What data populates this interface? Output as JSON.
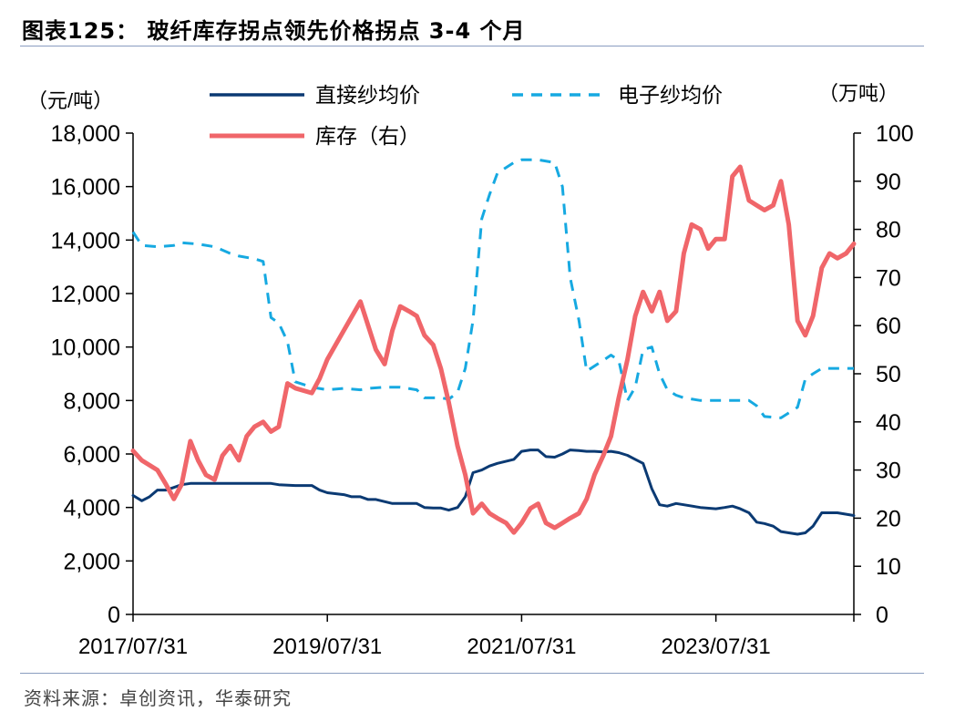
{
  "header": {
    "title": "图表125：  玻纤库存拐点领先价格拐点 3-4 个月"
  },
  "footer": {
    "source": "资料来源：卓创资讯，华泰研究"
  },
  "chart_data": {
    "type": "line",
    "left_axis": {
      "unit": "（元/吨）",
      "min": 0,
      "max": 18000,
      "step": 2000,
      "ticks": [
        "0",
        "2,000",
        "4,000",
        "6,000",
        "8,000",
        "10,000",
        "12,000",
        "14,000",
        "16,000",
        "18,000"
      ]
    },
    "right_axis": {
      "unit": "（万吨）",
      "min": 0,
      "max": 100,
      "step": 10,
      "ticks": [
        "0",
        "10",
        "20",
        "30",
        "40",
        "50",
        "60",
        "70",
        "80",
        "90",
        "100"
      ]
    },
    "x_axis": {
      "start": "2017/07/31",
      "end": "2025/01/31",
      "tick_labels": [
        "2017/07/31",
        "2019/07/31",
        "2021/07/31",
        "2023/07/31"
      ],
      "tick_values": [
        2017.58,
        2019.58,
        2021.58,
        2023.58
      ]
    },
    "legend": {
      "placement": "top",
      "entries": [
        {
          "label": "直接纱均价",
          "series": 0
        },
        {
          "label": "电子纱均价",
          "series": 1
        },
        {
          "label": "库存（右）",
          "series": 2
        }
      ]
    },
    "series": [
      {
        "name": "直接纱均价",
        "axis": "left",
        "color": "#0b3a73",
        "style": "solid",
        "x": [
          2017.58,
          2017.67,
          2017.75,
          2017.83,
          2017.92,
          2018.0,
          2018.08,
          2018.17,
          2018.25,
          2018.5,
          2018.75,
          2019.0,
          2019.08,
          2019.25,
          2019.42,
          2019.5,
          2019.58,
          2019.75,
          2019.83,
          2019.92,
          2020.0,
          2020.08,
          2020.25,
          2020.33,
          2020.5,
          2020.58,
          2020.67,
          2020.75,
          2020.83,
          2020.92,
          2021.0,
          2021.08,
          2021.17,
          2021.25,
          2021.33,
          2021.5,
          2021.58,
          2021.67,
          2021.75,
          2021.83,
          2021.92,
          2022.0,
          2022.08,
          2022.17,
          2022.25,
          2022.33,
          2022.42,
          2022.5,
          2022.58,
          2022.67,
          2022.75,
          2022.83,
          2022.92,
          2023.0,
          2023.08,
          2023.17,
          2023.25,
          2023.42,
          2023.58,
          2023.67,
          2023.75,
          2023.83,
          2023.92,
          2024.0,
          2024.08,
          2024.17,
          2024.25,
          2024.33,
          2024.42,
          2024.5,
          2024.58,
          2024.67,
          2024.83,
          2025.0
        ],
        "y": [
          4450,
          4250,
          4400,
          4650,
          4650,
          4750,
          4850,
          4900,
          4900,
          4900,
          4900,
          4900,
          4850,
          4820,
          4820,
          4650,
          4550,
          4480,
          4400,
          4400,
          4300,
          4300,
          4150,
          4150,
          4150,
          4000,
          3980,
          3980,
          3900,
          4000,
          4400,
          5300,
          5400,
          5550,
          5650,
          5800,
          6100,
          6150,
          6150,
          5900,
          5880,
          6000,
          6150,
          6130,
          6100,
          6100,
          6080,
          6100,
          6050,
          5950,
          5800,
          5650,
          4700,
          4100,
          4050,
          4150,
          4100,
          4000,
          3950,
          4000,
          4050,
          3950,
          3800,
          3450,
          3400,
          3300,
          3100,
          3050,
          3000,
          3050,
          3300,
          3800,
          3800,
          3700
        ]
      },
      {
        "name": "电子纱均价",
        "axis": "left",
        "color": "#16a9e1",
        "style": "dashed",
        "x": [
          2017.58,
          2017.67,
          2017.83,
          2018.0,
          2018.08,
          2018.25,
          2018.42,
          2018.58,
          2018.67,
          2018.83,
          2018.92,
          2019.0,
          2019.08,
          2019.17,
          2019.25,
          2019.42,
          2019.58,
          2019.75,
          2019.92,
          2020.0,
          2020.17,
          2020.33,
          2020.5,
          2020.58,
          2020.75,
          2020.83,
          2020.92,
          2021.0,
          2021.08,
          2021.17,
          2021.25,
          2021.33,
          2021.5,
          2021.58,
          2021.75,
          2021.92,
          2022.0,
          2022.08,
          2022.17,
          2022.25,
          2022.42,
          2022.5,
          2022.58,
          2022.67,
          2022.75,
          2022.83,
          2022.92,
          2023.0,
          2023.08,
          2023.17,
          2023.25,
          2023.42,
          2023.58,
          2023.75,
          2023.92,
          2024.0,
          2024.08,
          2024.25,
          2024.42,
          2024.5,
          2024.58,
          2024.67,
          2024.75,
          2025.0
        ],
        "y": [
          14300,
          13800,
          13750,
          13800,
          13900,
          13850,
          13750,
          13500,
          13400,
          13300,
          13200,
          11100,
          10900,
          10200,
          8700,
          8500,
          8400,
          8450,
          8400,
          8450,
          8500,
          8500,
          8400,
          8100,
          8100,
          8050,
          8300,
          9200,
          11000,
          14800,
          15700,
          16500,
          16900,
          17000,
          17000,
          16900,
          16000,
          12600,
          11000,
          9100,
          9500,
          9700,
          9500,
          8000,
          8500,
          9900,
          10000,
          9000,
          8400,
          8200,
          8100,
          8000,
          8000,
          8000,
          8000,
          7800,
          7400,
          7350,
          7750,
          8800,
          9000,
          9200,
          9200,
          9200
        ]
      },
      {
        "name": "库存（右）",
        "axis": "right",
        "color": "#f0666a",
        "style": "solid",
        "x": [
          2017.58,
          2017.67,
          2017.83,
          2017.92,
          2018.0,
          2018.08,
          2018.17,
          2018.25,
          2018.33,
          2018.42,
          2018.5,
          2018.58,
          2018.67,
          2018.75,
          2018.83,
          2018.92,
          2019.0,
          2019.08,
          2019.17,
          2019.25,
          2019.42,
          2019.5,
          2019.58,
          2019.75,
          2019.92,
          2020.0,
          2020.08,
          2020.17,
          2020.25,
          2020.33,
          2020.42,
          2020.5,
          2020.58,
          2020.67,
          2020.75,
          2020.83,
          2020.92,
          2021.0,
          2021.08,
          2021.17,
          2021.25,
          2021.33,
          2021.42,
          2021.5,
          2021.58,
          2021.67,
          2021.75,
          2021.83,
          2021.92,
          2022.0,
          2022.08,
          2022.17,
          2022.25,
          2022.33,
          2022.42,
          2022.5,
          2022.58,
          2022.67,
          2022.75,
          2022.83,
          2022.92,
          2023.0,
          2023.08,
          2023.17,
          2023.25,
          2023.33,
          2023.42,
          2023.5,
          2023.58,
          2023.67,
          2023.75,
          2023.83,
          2023.92,
          2024.0,
          2024.08,
          2024.17,
          2024.25,
          2024.33,
          2024.42,
          2024.5,
          2024.58,
          2024.67,
          2024.75,
          2024.83,
          2024.92,
          2025.0
        ],
        "y": [
          34,
          32,
          30,
          27,
          24,
          27,
          36,
          32,
          29,
          28,
          33,
          35,
          32,
          37,
          39,
          40,
          38,
          39,
          48,
          47,
          46,
          49,
          53,
          59,
          65,
          60,
          55,
          52,
          59,
          64,
          63,
          62,
          58,
          56,
          51,
          44,
          35,
          29,
          21,
          23,
          21,
          20,
          19,
          17,
          19,
          22,
          23,
          19,
          18,
          19,
          20,
          21,
          24,
          29,
          33,
          37,
          45,
          53,
          62,
          67,
          63,
          67,
          61,
          63,
          75,
          81,
          80,
          76,
          78,
          78,
          91,
          93,
          86,
          85,
          84,
          85,
          90,
          81,
          61,
          58,
          62,
          72,
          75,
          74,
          75,
          77
        ]
      }
    ]
  }
}
